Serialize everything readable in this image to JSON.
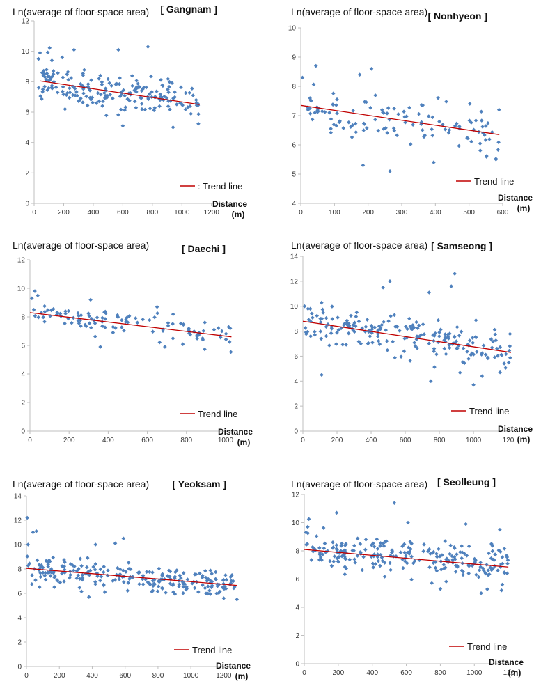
{
  "chart_data": [
    {
      "type": "scatter",
      "title": "[ Gangnam ]",
      "ylabel": "Ln(average of floor-space area)",
      "xlabel_line1": "Distance",
      "xlabel_line2": "(m)",
      "xlim": [
        0,
        1300
      ],
      "ylim": [
        0,
        12
      ],
      "xticks": [
        0,
        200,
        400,
        600,
        800,
        1000,
        1200
      ],
      "yticks": [
        0,
        2,
        4,
        6,
        8,
        10,
        12
      ],
      "legend": ": Trend line",
      "trend": {
        "x": [
          40,
          1120
        ],
        "y": [
          8.05,
          6.5
        ]
      },
      "seed": 11,
      "n": 200,
      "x": [
        30,
        1120
      ],
      "spread": 0.85,
      "outliers": [
        [
          30,
          9.5
        ],
        [
          40,
          9.9
        ],
        [
          270,
          10.1
        ],
        [
          570,
          10.1
        ],
        [
          770,
          10.3
        ],
        [
          600,
          5.1
        ],
        [
          940,
          5.0
        ],
        [
          120,
          9.4
        ],
        [
          190,
          9.6
        ]
      ]
    },
    {
      "type": "scatter",
      "title": "[ Nonhyeon ]",
      "ylabel": "Ln(average of floor-space area)",
      "xlabel_line1": "Distance",
      "xlabel_line2": "(m)",
      "xlim": [
        0,
        600
      ],
      "ylim": [
        4,
        10
      ],
      "xticks": [
        0,
        100,
        200,
        300,
        400,
        500,
        600
      ],
      "yticks": [
        4,
        5,
        6,
        7,
        8,
        9,
        10
      ],
      "legend": "Trend line",
      "trend": {
        "x": [
          0,
          590
        ],
        "y": [
          7.35,
          6.35
        ]
      },
      "seed": 23,
      "n": 120,
      "x": [
        5,
        590
      ],
      "spread": 0.5,
      "outliers": [
        [
          5,
          8.3
        ],
        [
          45,
          8.7
        ],
        [
          175,
          8.4
        ],
        [
          210,
          8.6
        ],
        [
          265,
          5.1
        ],
        [
          395,
          5.4
        ],
        [
          580,
          5.5
        ],
        [
          185,
          5.3
        ]
      ]
    },
    {
      "type": "scatter",
      "title": "[ Daechi ]",
      "ylabel": "Ln(average of floor-space area)",
      "xlabel_line1": "Distance",
      "xlabel_line2": "(m)",
      "xlim": [
        0,
        1050
      ],
      "ylim": [
        0,
        12
      ],
      "xticks": [
        0,
        200,
        400,
        600,
        800,
        1000
      ],
      "yticks": [
        0,
        2,
        4,
        6,
        8,
        10,
        12
      ],
      "legend": "Trend line",
      "trend": {
        "x": [
          0,
          1030
        ],
        "y": [
          8.3,
          6.6
        ]
      },
      "seed": 37,
      "n": 110,
      "x": [
        5,
        1030
      ],
      "spread": 0.6,
      "outliers": [
        [
          10,
          9.3
        ],
        [
          25,
          9.8
        ],
        [
          40,
          9.5
        ],
        [
          310,
          9.2
        ],
        [
          650,
          8.7
        ],
        [
          360,
          5.9
        ],
        [
          690,
          5.9
        ],
        [
          20,
          8.5
        ]
      ]
    },
    {
      "type": "scatter",
      "title": "[ Samseong ]",
      "ylabel": "Ln(average of floor-space area)",
      "xlabel_line1": "Distance",
      "xlabel_line2": "(m)",
      "xlim": [
        0,
        1220
      ],
      "ylim": [
        0,
        14
      ],
      "xticks": [
        0,
        200,
        400,
        600,
        800,
        1000
      ],
      "xtick_last": "120",
      "yticks": [
        0,
        2,
        4,
        6,
        8,
        10,
        12,
        14
      ],
      "legend": "Trend line",
      "trend": {
        "x": [
          0,
          1220
        ],
        "y": [
          8.8,
          6.3
        ]
      },
      "seed": 53,
      "n": 210,
      "x": [
        5,
        1215
      ],
      "spread": 1.05,
      "outliers": [
        [
          510,
          12.0
        ],
        [
          890,
          12.6
        ],
        [
          470,
          11.5
        ],
        [
          740,
          11.1
        ],
        [
          870,
          11.6
        ],
        [
          110,
          4.5
        ],
        [
          750,
          4.0
        ],
        [
          1000,
          3.7
        ],
        [
          1050,
          4.4
        ],
        [
          10,
          10.0
        ],
        [
          30,
          9.8
        ]
      ]
    },
    {
      "type": "scatter",
      "title": "[ Yeoksam ]",
      "ylabel": "Ln(average of floor-space area)",
      "xlabel_line1": "Distance",
      "xlabel_line2": "(m)",
      "xlim": [
        0,
        1300
      ],
      "ylim": [
        0,
        14
      ],
      "xticks": [
        0,
        200,
        400,
        600,
        800,
        1000,
        1200
      ],
      "yticks": [
        0,
        2,
        4,
        6,
        8,
        10,
        12,
        14
      ],
      "legend": "Trend line",
      "trend": {
        "x": [
          0,
          1280
        ],
        "y": [
          8.05,
          6.65
        ]
      },
      "seed": 71,
      "n": 240,
      "x": [
        5,
        1280
      ],
      "spread": 0.75,
      "outliers": [
        [
          5,
          12.2
        ],
        [
          40,
          11.0
        ],
        [
          60,
          11.1
        ],
        [
          420,
          10.0
        ],
        [
          540,
          10.1
        ],
        [
          590,
          10.5
        ],
        [
          10,
          10.0
        ],
        [
          1280,
          5.5
        ],
        [
          380,
          5.7
        ],
        [
          1200,
          5.6
        ]
      ]
    },
    {
      "type": "scatter",
      "title": "[ Seolleung ]",
      "ylabel": "Ln(average of floor-space area)",
      "xlabel_line1": "Distance",
      "xlabel_line2": "(m)",
      "xlim": [
        0,
        1220
      ],
      "ylim": [
        0,
        12
      ],
      "xticks": [
        0,
        200,
        400,
        600,
        800,
        1000
      ],
      "xtick_last": "120",
      "yticks": [
        0,
        2,
        4,
        6,
        8,
        10,
        12
      ],
      "legend": "Trend line",
      "trend": {
        "x": [
          0,
          1200
        ],
        "y": [
          8.1,
          6.85
        ]
      },
      "seed": 97,
      "n": 240,
      "x": [
        5,
        1200
      ],
      "spread": 0.95,
      "outliers": [
        [
          530,
          11.4
        ],
        [
          190,
          10.7
        ],
        [
          610,
          10.0
        ],
        [
          950,
          9.9
        ],
        [
          1150,
          9.5
        ],
        [
          1040,
          5.0
        ],
        [
          1160,
          5.2
        ],
        [
          800,
          5.3
        ],
        [
          20,
          9.7
        ],
        [
          10,
          9.3
        ]
      ]
    }
  ],
  "colors": {
    "point": "#4f81bd",
    "trend": "#c00000",
    "axis": "#bfbfbf",
    "text": "#111111"
  }
}
